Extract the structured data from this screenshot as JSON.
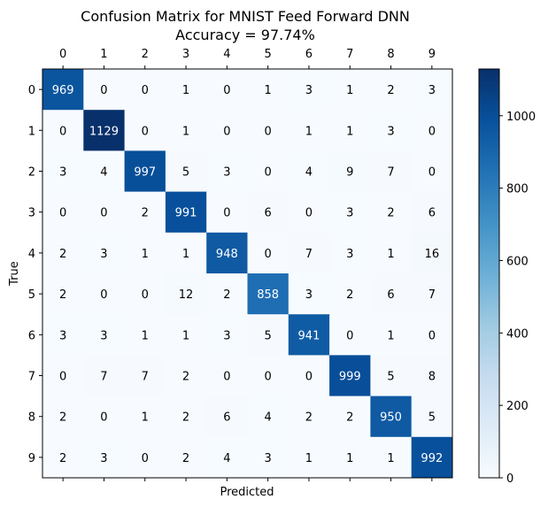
{
  "chart_data": {
    "type": "heatmap",
    "title": "Confusion Matrix for MNIST Feed Forward DNN",
    "subtitle": "Accuracy = 97.74%",
    "xlabel": "Predicted",
    "ylabel": "True",
    "x_categories": [
      "0",
      "1",
      "2",
      "3",
      "4",
      "5",
      "6",
      "7",
      "8",
      "9"
    ],
    "y_categories": [
      "0",
      "1",
      "2",
      "3",
      "4",
      "5",
      "6",
      "7",
      "8",
      "9"
    ],
    "x_ticks_position": "top",
    "matrix": [
      [
        969,
        0,
        0,
        1,
        0,
        1,
        3,
        1,
        2,
        3
      ],
      [
        0,
        1129,
        0,
        1,
        0,
        0,
        1,
        1,
        3,
        0
      ],
      [
        3,
        4,
        997,
        5,
        3,
        0,
        4,
        9,
        7,
        0
      ],
      [
        0,
        0,
        2,
        991,
        0,
        6,
        0,
        3,
        2,
        6
      ],
      [
        2,
        3,
        1,
        1,
        948,
        0,
        7,
        3,
        1,
        16
      ],
      [
        2,
        0,
        0,
        12,
        2,
        858,
        3,
        2,
        6,
        7
      ],
      [
        3,
        3,
        1,
        1,
        3,
        5,
        941,
        0,
        1,
        0
      ],
      [
        0,
        7,
        7,
        2,
        0,
        0,
        0,
        999,
        5,
        8
      ],
      [
        2,
        0,
        1,
        2,
        6,
        4,
        2,
        2,
        950,
        5
      ],
      [
        2,
        3,
        0,
        2,
        4,
        3,
        1,
        1,
        1,
        992
      ]
    ],
    "colormap": "Blues",
    "colorbar": {
      "range": [
        0,
        1129
      ],
      "ticks": [
        0,
        200,
        400,
        600,
        800,
        1000
      ]
    },
    "grid": false
  }
}
